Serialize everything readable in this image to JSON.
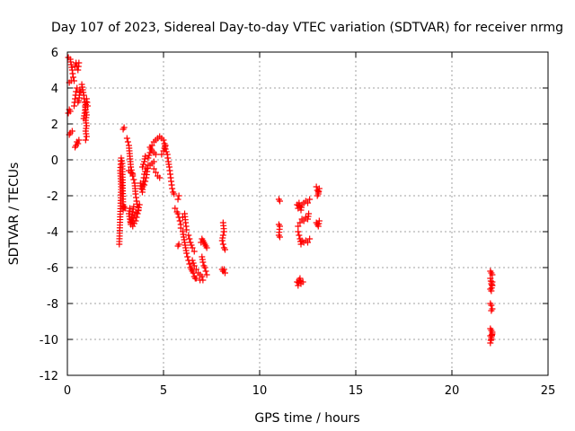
{
  "chart_data": {
    "type": "scatter",
    "title": "Day 107 of 2023, Sidereal Day-to-day VTEC variation (SDTVAR) for receiver nrmg",
    "xlabel": "GPS time / hours",
    "ylabel": "SDTVAR / TECUs",
    "xlim": [
      0,
      25
    ],
    "ylim": [
      -12,
      6
    ],
    "xticks": [
      "0",
      "5",
      "10",
      "15",
      "20",
      "25"
    ],
    "yticks": [
      "-12",
      "-10",
      "-8",
      "-6",
      "-4",
      "-2",
      "0",
      "2",
      "4",
      "6"
    ],
    "grid": true,
    "marker": "+",
    "color": "#ff0000",
    "series": [
      {
        "segments": [
          [
            [
              0.05,
              2.6
            ],
            [
              0.1,
              2.8
            ],
            [
              0.15,
              2.7
            ]
          ],
          [
            [
              0.1,
              1.4
            ],
            [
              0.15,
              1.5
            ],
            [
              0.25,
              1.6
            ]
          ],
          [
            [
              0.05,
              5.7
            ],
            [
              0.15,
              5.6
            ],
            [
              0.2,
              5.3
            ],
            [
              0.25,
              5.0
            ],
            [
              0.3,
              4.6
            ],
            [
              0.35,
              4.4
            ]
          ],
          [
            [
              0.1,
              4.3
            ],
            [
              0.2,
              4.4
            ]
          ],
          [
            [
              0.35,
              3.0
            ],
            [
              0.4,
              3.4
            ],
            [
              0.45,
              3.8
            ],
            [
              0.5,
              4.0
            ]
          ],
          [
            [
              0.4,
              5.2
            ],
            [
              0.45,
              5.4
            ],
            [
              0.5,
              5.2
            ],
            [
              0.55,
              5.0
            ],
            [
              0.6,
              5.4
            ]
          ],
          [
            [
              0.4,
              0.7
            ],
            [
              0.45,
              0.8
            ],
            [
              0.5,
              1.0
            ],
            [
              0.55,
              0.9
            ],
            [
              0.6,
              1.1
            ]
          ],
          [
            [
              0.55,
              3.2
            ],
            [
              0.6,
              3.3
            ],
            [
              0.65,
              3.9
            ],
            [
              0.7,
              3.8
            ]
          ],
          [
            [
              0.75,
              4.2
            ],
            [
              0.8,
              3.9
            ],
            [
              0.85,
              3.6
            ],
            [
              0.9,
              3.2
            ],
            [
              0.95,
              2.8
            ],
            [
              1.0,
              2.5
            ],
            [
              0.95,
              2.2
            ],
            [
              1.0,
              1.9
            ],
            [
              0.95,
              1.6
            ],
            [
              1.0,
              1.3
            ],
            [
              0.95,
              1.1
            ]
          ],
          [
            [
              0.85,
              2.3
            ],
            [
              0.9,
              2.6
            ],
            [
              1.0,
              3.4
            ],
            [
              1.05,
              3.0
            ]
          ],
          [
            [
              2.7,
              -4.7
            ],
            [
              2.8,
              -1.5
            ],
            [
              2.75,
              -0.6
            ],
            [
              2.8,
              0.1
            ],
            [
              2.85,
              -0.2
            ],
            [
              2.9,
              -2.8
            ],
            [
              2.95,
              -2.6
            ],
            [
              3.0,
              -2.7
            ]
          ],
          [
            [
              2.9,
              1.7
            ],
            [
              2.95,
              1.8
            ]
          ],
          [
            [
              3.1,
              1.2
            ],
            [
              3.2,
              0.8
            ],
            [
              3.25,
              0.2
            ],
            [
              3.3,
              -0.4
            ],
            [
              3.4,
              -0.9
            ],
            [
              3.5,
              -1.3
            ],
            [
              3.55,
              -1.9
            ],
            [
              3.6,
              -2.3
            ],
            [
              3.7,
              -2.8
            ],
            [
              3.5,
              -3.1
            ],
            [
              3.4,
              -3.4
            ],
            [
              3.3,
              -3.5
            ],
            [
              3.35,
              -3.2
            ],
            [
              3.45,
              -2.6
            ],
            [
              3.25,
              -2.7
            ],
            [
              3.2,
              -3.0
            ],
            [
              3.3,
              -3.6
            ],
            [
              3.4,
              -3.7
            ],
            [
              3.55,
              -3.4
            ],
            [
              3.65,
              -3.0
            ],
            [
              3.75,
              -2.5
            ]
          ],
          [
            [
              3.2,
              -0.6
            ],
            [
              3.3,
              -0.7
            ],
            [
              3.4,
              -0.8
            ]
          ],
          [
            [
              3.8,
              -1.3
            ],
            [
              3.85,
              -1.6
            ],
            [
              3.9,
              -1.8
            ],
            [
              3.95,
              -1.2
            ],
            [
              4.0,
              -0.8
            ],
            [
              4.1,
              -0.5
            ],
            [
              4.2,
              -0.3
            ],
            [
              4.1,
              -1.0
            ],
            [
              4.0,
              -1.4
            ]
          ],
          [
            [
              3.9,
              -0.4
            ],
            [
              4.0,
              -0.1
            ],
            [
              4.05,
              0.2
            ]
          ],
          [
            [
              4.2,
              0.1
            ],
            [
              4.3,
              0.4
            ],
            [
              4.4,
              0.8
            ],
            [
              4.5,
              1.0
            ],
            [
              4.6,
              1.1
            ],
            [
              4.7,
              1.2
            ],
            [
              4.8,
              1.3
            ],
            [
              4.9,
              1.2
            ],
            [
              5.0,
              1.1
            ],
            [
              5.05,
              0.9
            ],
            [
              5.1,
              0.6
            ],
            [
              5.2,
              0.3
            ],
            [
              5.25,
              -0.1
            ],
            [
              5.3,
              -0.4
            ],
            [
              5.35,
              -0.8
            ],
            [
              5.4,
              -1.2
            ],
            [
              5.45,
              -1.6
            ],
            [
              5.5,
              -1.8
            ],
            [
              5.55,
              -1.9
            ]
          ],
          [
            [
              4.3,
              0.7
            ],
            [
              4.4,
              0.5
            ],
            [
              4.5,
              0.4
            ],
            [
              4.6,
              0.3
            ]
          ],
          [
            [
              4.5,
              -0.5
            ],
            [
              4.6,
              -0.7
            ],
            [
              4.7,
              -0.9
            ],
            [
              4.8,
              -1.0
            ]
          ],
          [
            [
              4.3,
              -0.3
            ],
            [
              4.4,
              -0.2
            ],
            [
              4.5,
              -0.1
            ]
          ],
          [
            [
              4.9,
              0.3
            ],
            [
              5.0,
              0.5
            ],
            [
              5.1,
              0.8
            ]
          ],
          [
            [
              5.6,
              -2.7
            ],
            [
              5.7,
              -2.9
            ],
            [
              5.75,
              -3.0
            ],
            [
              5.8,
              -3.2
            ],
            [
              5.85,
              -3.4
            ],
            [
              5.9,
              -3.6
            ]
          ],
          [
            [
              5.75,
              -2.2
            ],
            [
              5.8,
              -2.0
            ]
          ],
          [
            [
              5.75,
              -4.8
            ],
            [
              5.8,
              -4.7
            ]
          ],
          [
            [
              5.9,
              -3.8
            ],
            [
              6.0,
              -4.0
            ],
            [
              6.05,
              -4.3
            ],
            [
              6.1,
              -4.6
            ],
            [
              6.15,
              -4.9
            ],
            [
              6.2,
              -5.2
            ],
            [
              6.25,
              -5.4
            ],
            [
              6.3,
              -5.6
            ],
            [
              6.35,
              -5.8
            ],
            [
              6.4,
              -6.0
            ],
            [
              6.45,
              -6.1
            ],
            [
              6.5,
              -6.2
            ],
            [
              6.55,
              -6.3
            ],
            [
              6.6,
              -6.5
            ],
            [
              6.65,
              -6.6
            ],
            [
              6.7,
              -6.6
            ]
          ],
          [
            [
              6.0,
              -3.2
            ],
            [
              6.1,
              -3.0
            ],
            [
              6.15,
              -3.5
            ],
            [
              6.2,
              -3.9
            ]
          ],
          [
            [
              6.3,
              -4.2
            ],
            [
              6.4,
              -4.6
            ],
            [
              6.5,
              -4.9
            ],
            [
              6.6,
              -5.1
            ]
          ],
          [
            [
              6.5,
              -5.6
            ],
            [
              6.6,
              -5.9
            ],
            [
              6.7,
              -6.1
            ],
            [
              6.8,
              -6.3
            ],
            [
              6.9,
              -6.4
            ],
            [
              7.0,
              -6.5
            ],
            [
              7.05,
              -6.7
            ],
            [
              6.9,
              -6.7
            ]
          ],
          [
            [
              6.95,
              -4.6
            ],
            [
              7.0,
              -4.4
            ],
            [
              7.05,
              -4.5
            ],
            [
              7.1,
              -4.6
            ],
            [
              7.15,
              -4.7
            ],
            [
              7.2,
              -4.8
            ],
            [
              7.25,
              -4.9
            ]
          ],
          [
            [
              7.0,
              -5.4
            ],
            [
              7.05,
              -5.7
            ],
            [
              7.1,
              -5.9
            ],
            [
              7.15,
              -6.0
            ],
            [
              7.2,
              -6.2
            ],
            [
              7.25,
              -6.4
            ]
          ],
          [
            [
              8.1,
              -3.5
            ],
            [
              8.15,
              -4.0
            ],
            [
              8.1,
              -4.2
            ],
            [
              8.05,
              -4.5
            ],
            [
              8.1,
              -4.7
            ],
            [
              8.15,
              -4.9
            ],
            [
              8.2,
              -5.0
            ]
          ],
          [
            [
              8.05,
              -6.1
            ],
            [
              8.1,
              -6.2
            ],
            [
              8.15,
              -6.1
            ],
            [
              8.2,
              -6.3
            ]
          ],
          [
            [
              11.0,
              -2.2
            ],
            [
              11.05,
              -2.3
            ]
          ],
          [
            [
              11.0,
              -3.6
            ],
            [
              11.05,
              -3.7
            ],
            [
              11.0,
              -4.2
            ],
            [
              11.05,
              -4.3
            ]
          ],
          [
            [
              11.95,
              -2.5
            ],
            [
              12.0,
              -2.7
            ],
            [
              12.05,
              -2.4
            ],
            [
              12.1,
              -2.6
            ],
            [
              12.15,
              -2.8
            ],
            [
              12.2,
              -2.5
            ],
            [
              12.3,
              -2.4
            ],
            [
              12.4,
              -2.3
            ],
            [
              12.5,
              -2.4
            ],
            [
              12.6,
              -2.2
            ]
          ],
          [
            [
              12.0,
              -4.0
            ],
            [
              12.05,
              -4.2
            ],
            [
              12.1,
              -4.4
            ],
            [
              12.15,
              -4.7
            ],
            [
              12.2,
              -4.5
            ],
            [
              12.3,
              -4.6
            ],
            [
              12.4,
              -4.5
            ],
            [
              12.5,
              -4.6
            ],
            [
              12.6,
              -4.4
            ]
          ],
          [
            [
              12.0,
              -3.7
            ],
            [
              12.1,
              -3.5
            ],
            [
              12.2,
              -3.3
            ],
            [
              12.3,
              -3.4
            ],
            [
              12.4,
              -3.2
            ],
            [
              12.5,
              -3.3
            ],
            [
              12.55,
              -3.0
            ]
          ],
          [
            [
              11.95,
              -6.8
            ],
            [
              12.0,
              -7.0
            ],
            [
              12.05,
              -6.7
            ],
            [
              12.1,
              -6.6
            ],
            [
              12.15,
              -6.9
            ],
            [
              12.25,
              -6.8
            ]
          ],
          [
            [
              12.95,
              -1.5
            ],
            [
              13.0,
              -1.7
            ],
            [
              13.05,
              -1.9
            ],
            [
              13.1,
              -1.6
            ],
            [
              13.0,
              -2.0
            ]
          ],
          [
            [
              12.95,
              -3.5
            ],
            [
              13.0,
              -3.6
            ],
            [
              13.05,
              -3.7
            ],
            [
              13.1,
              -3.4
            ]
          ],
          [
            [
              22.0,
              -6.2
            ],
            [
              22.05,
              -6.3
            ],
            [
              22.1,
              -6.4
            ],
            [
              22.0,
              -6.6
            ],
            [
              22.05,
              -6.9
            ],
            [
              22.1,
              -7.0
            ],
            [
              22.0,
              -7.2
            ],
            [
              22.05,
              -7.3
            ],
            [
              22.1,
              -6.8
            ]
          ],
          [
            [
              22.0,
              -8.0
            ],
            [
              22.05,
              -8.1
            ],
            [
              22.1,
              -8.3
            ],
            [
              22.05,
              -8.4
            ]
          ],
          [
            [
              22.0,
              -9.4
            ],
            [
              22.05,
              -9.5
            ],
            [
              22.1,
              -9.7
            ],
            [
              22.0,
              -9.8
            ],
            [
              22.05,
              -10.0
            ],
            [
              22.1,
              -9.6
            ],
            [
              22.0,
              -10.2
            ]
          ]
        ]
      }
    ]
  }
}
